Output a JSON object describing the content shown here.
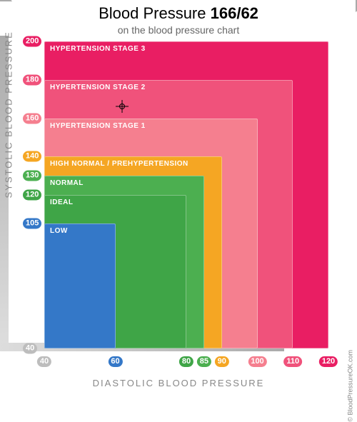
{
  "title_prefix": "Blood Pressure",
  "reading": "166/62",
  "subtitle": "on the blood pressure chart",
  "y_axis_label": "SYSTOLIC BLOOD PRESSURE",
  "x_axis_label": "DIASTOLIC BLOOD PRESSURE",
  "credit": "© BloodPressureOK.com",
  "axes": {
    "x_min": 40,
    "x_max": 120,
    "y_min": 40,
    "y_max": 200
  },
  "marker": {
    "diastolic": 62,
    "systolic": 166
  },
  "zones": [
    {
      "label": "HYPERTENSION STAGE 3",
      "x_max": 120,
      "y_max": 200,
      "color": "#e91e63",
      "label_color": "#ffffff"
    },
    {
      "label": "HYPERTENSION STAGE 2",
      "x_max": 110,
      "y_max": 180,
      "color": "#f0527b",
      "label_color": "#ffffff"
    },
    {
      "label": "HYPERTENSION STAGE 1",
      "x_max": 100,
      "y_max": 160,
      "color": "#f57f8f",
      "label_color": "#ffffff"
    },
    {
      "label": "HIGH NORMAL / PREHYPERTENSION",
      "x_max": 90,
      "y_max": 140,
      "color": "#f5a623",
      "label_color": "#ffffff"
    },
    {
      "label": "NORMAL",
      "x_max": 85,
      "y_max": 130,
      "color": "#4caf50",
      "label_color": "#ffffff"
    },
    {
      "label": "IDEAL",
      "x_max": 80,
      "y_max": 120,
      "color": "#3fa547",
      "label_color": "#ffffff"
    },
    {
      "label": "LOW",
      "x_max": 60,
      "y_max": 105,
      "color": "#3478c8",
      "label_color": "#ffffff"
    }
  ],
  "y_ticks": [
    {
      "v": 200,
      "color": "#e91e63"
    },
    {
      "v": 180,
      "color": "#f0527b"
    },
    {
      "v": 160,
      "color": "#f57f8f"
    },
    {
      "v": 140,
      "color": "#f5a623"
    },
    {
      "v": 130,
      "color": "#4caf50"
    },
    {
      "v": 120,
      "color": "#3fa547"
    },
    {
      "v": 105,
      "color": "#3478c8"
    },
    {
      "v": 40,
      "color": "#bdbdbd"
    }
  ],
  "x_ticks": [
    {
      "v": 40,
      "color": "#bdbdbd"
    },
    {
      "v": 60,
      "color": "#3478c8"
    },
    {
      "v": 80,
      "color": "#3fa547"
    },
    {
      "v": 85,
      "color": "#4caf50"
    },
    {
      "v": 90,
      "color": "#f5a623"
    },
    {
      "v": 100,
      "color": "#f57f8f"
    },
    {
      "v": 110,
      "color": "#f0527b"
    },
    {
      "v": 120,
      "color": "#e91e63"
    }
  ]
}
